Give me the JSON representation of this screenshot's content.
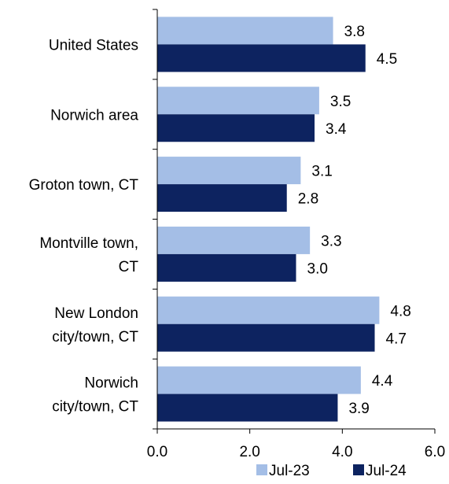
{
  "chart_data": {
    "type": "bar",
    "orientation": "horizontal",
    "categories": [
      [
        "United States"
      ],
      [
        "Norwich area"
      ],
      [
        "Groton town, CT"
      ],
      [
        "Montville town,",
        "CT"
      ],
      [
        "New London",
        "city/town, CT"
      ],
      [
        "Norwich",
        "city/town, CT"
      ]
    ],
    "series": [
      {
        "name": "Jul-23",
        "color": "#a4bee6",
        "values": [
          3.8,
          3.5,
          3.1,
          3.3,
          4.8,
          4.4
        ],
        "labels": [
          "3.8",
          "3.5",
          "3.1",
          "3.3",
          "4.8",
          "4.4"
        ]
      },
      {
        "name": "Jul-24",
        "color": "#0d2360",
        "values": [
          4.5,
          3.4,
          2.8,
          3.0,
          4.7,
          3.9
        ],
        "labels": [
          "4.5",
          "3.4",
          "2.8",
          "3.0",
          "4.7",
          "3.9"
        ]
      }
    ],
    "xlim": [
      0,
      6
    ],
    "xticks": [
      0,
      2,
      4,
      6
    ],
    "xtick_labels": [
      "0.0",
      "2.0",
      "4.0",
      "6.0"
    ],
    "grid": false,
    "legend_position": "bottom"
  }
}
